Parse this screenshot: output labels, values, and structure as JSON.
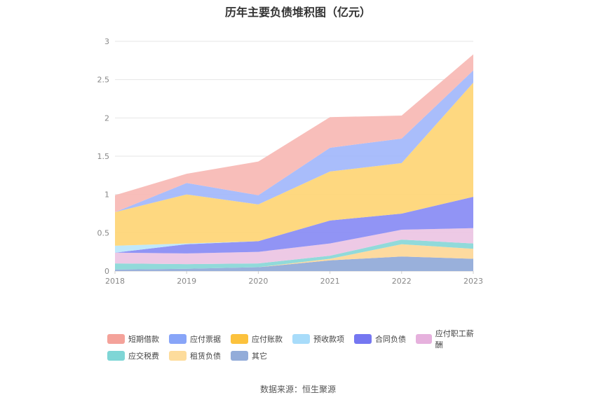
{
  "chart_data": {
    "type": "area",
    "stacked": true,
    "title": "历年主要负债堆积图（亿元）",
    "categories": [
      "2018",
      "2019",
      "2020",
      "2021",
      "2022",
      "2023"
    ],
    "ylim": [
      0,
      3
    ],
    "yticks": [
      "0",
      "0.5",
      "1",
      "1.5",
      "2",
      "2.5",
      "3"
    ],
    "grid": true,
    "legend_position": "bottom",
    "series": [
      {
        "name": "其它",
        "color": "#93acd9",
        "values": [
          0.02,
          0.03,
          0.05,
          0.14,
          0.19,
          0.16
        ]
      },
      {
        "name": "租赁负债",
        "color": "#fdd89a",
        "values": [
          0.0,
          0.0,
          0.0,
          0.02,
          0.16,
          0.13
        ]
      },
      {
        "name": "应交税费",
        "color": "#8bd8d8",
        "values": [
          0.08,
          0.06,
          0.05,
          0.04,
          0.06,
          0.07
        ]
      },
      {
        "name": "应付职工薪酬",
        "color": "#ecc6e4",
        "values": [
          0.14,
          0.14,
          0.15,
          0.16,
          0.13,
          0.2
        ]
      },
      {
        "name": "合同负债",
        "color": "#8b8ef4",
        "values": [
          0.0,
          0.12,
          0.14,
          0.3,
          0.21,
          0.41
        ]
      },
      {
        "name": "预收款项",
        "color": "#bce7fb",
        "values": [
          0.09,
          0.01,
          0.0,
          0.0,
          0.0,
          0.0
        ]
      },
      {
        "name": "应付账款",
        "color": "#fed679",
        "values": [
          0.44,
          0.64,
          0.48,
          0.64,
          0.66,
          1.49
        ]
      },
      {
        "name": "应付票据",
        "color": "#a4b9fb",
        "values": [
          0.0,
          0.15,
          0.12,
          0.31,
          0.32,
          0.16
        ]
      },
      {
        "name": "短期借款",
        "color": "#f8bbb6",
        "values": [
          0.22,
          0.12,
          0.44,
          0.4,
          0.3,
          0.21
        ]
      }
    ]
  },
  "legend": {
    "row1": [
      {
        "label": "短期借款",
        "color": "#f4a29a"
      },
      {
        "label": "应付票据",
        "color": "#88a5f8"
      },
      {
        "label": "应付账款",
        "color": "#fcc23d"
      },
      {
        "label": "预收款项",
        "color": "#a8dcfa"
      },
      {
        "label": "合同负债",
        "color": "#7577f1"
      },
      {
        "label": "应付职工薪酬",
        "color": "#e6b1dd"
      }
    ],
    "row2": [
      {
        "label": "应交税费",
        "color": "#7fd6d6"
      },
      {
        "label": "租赁负债",
        "color": "#fddc9c"
      },
      {
        "label": "其它",
        "color": "#93acd9"
      }
    ]
  },
  "source": "数据来源：恒生聚源"
}
